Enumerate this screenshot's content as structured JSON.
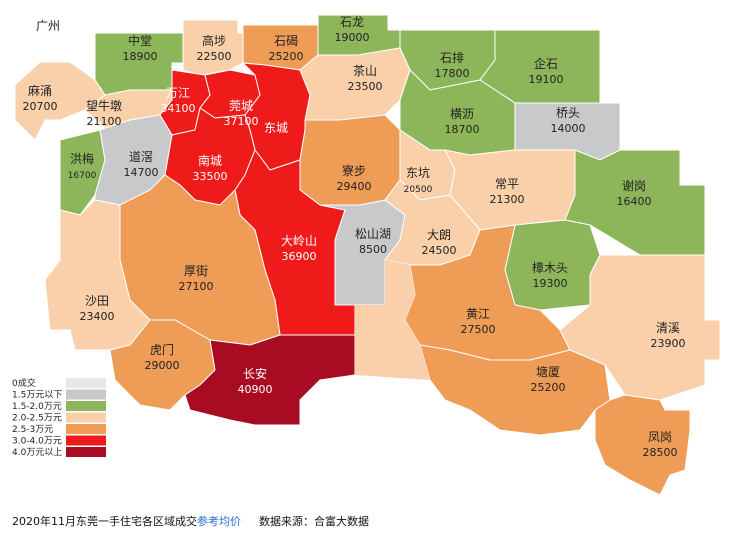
{
  "map": {
    "outside_label": "广州",
    "colors": {
      "zero": "#e7e7e7",
      "below_1_5": "#c8c9cb",
      "1_5_to_2": "#8db65a",
      "2_to_2_5": "#f9d0aa",
      "2_5_to_3": "#ef9c57",
      "3_to_4": "#ef1b1b",
      "above_4": "#a80c22"
    },
    "regions": [
      {
        "name": "中堂",
        "price": "18900",
        "tier": "1_5_to_2"
      },
      {
        "name": "高埗",
        "price": "22500",
        "tier": "2_to_2_5"
      },
      {
        "name": "石碣",
        "price": "25200",
        "tier": "2_5_to_3"
      },
      {
        "name": "石龙",
        "price": "19000",
        "tier": "1_5_to_2"
      },
      {
        "name": "石排",
        "price": "17800",
        "tier": "1_5_to_2"
      },
      {
        "name": "企石",
        "price": "19100",
        "tier": "1_5_to_2"
      },
      {
        "name": "麻涌",
        "price": "20700",
        "tier": "2_to_2_5"
      },
      {
        "name": "望牛墩",
        "price": "21100",
        "tier": "2_to_2_5"
      },
      {
        "name": "万江",
        "price": "34100",
        "tier": "3_to_4"
      },
      {
        "name": "莞城",
        "price": "37100",
        "tier": "3_to_4"
      },
      {
        "name": "东城",
        "price": "",
        "tier": "3_to_4"
      },
      {
        "name": "茶山",
        "price": "23500",
        "tier": "2_to_2_5"
      },
      {
        "name": "横沥",
        "price": "18700",
        "tier": "1_5_to_2"
      },
      {
        "name": "桥头",
        "price": "14000",
        "tier": "below_1_5"
      },
      {
        "name": "洪梅",
        "price": "16700",
        "tier": "1_5_to_2"
      },
      {
        "name": "道滘",
        "price": "14700",
        "tier": "below_1_5"
      },
      {
        "name": "南城",
        "price": "33500",
        "tier": "3_to_4"
      },
      {
        "name": "寮步",
        "price": "29400",
        "tier": "2_5_to_3"
      },
      {
        "name": "东坑",
        "price": "20500",
        "tier": "2_to_2_5"
      },
      {
        "name": "常平",
        "price": "21300",
        "tier": "2_to_2_5"
      },
      {
        "name": "谢岗",
        "price": "16400",
        "tier": "1_5_to_2"
      },
      {
        "name": "大岭山",
        "price": "36900",
        "tier": "3_to_4"
      },
      {
        "name": "松山湖",
        "price": "8500",
        "tier": "below_1_5"
      },
      {
        "name": "大朗",
        "price": "24500",
        "tier": "2_to_2_5"
      },
      {
        "name": "厚街",
        "price": "27100",
        "tier": "2_5_to_3"
      },
      {
        "name": "樟木头",
        "price": "19300",
        "tier": "1_5_to_2"
      },
      {
        "name": "沙田",
        "price": "23400",
        "tier": "2_to_2_5"
      },
      {
        "name": "黄江",
        "price": "27500",
        "tier": "2_5_to_3"
      },
      {
        "name": "清溪",
        "price": "23900",
        "tier": "2_to_2_5"
      },
      {
        "name": "虎门",
        "price": "29000",
        "tier": "2_5_to_3"
      },
      {
        "name": "长安",
        "price": "40900",
        "tier": "above_4"
      },
      {
        "name": "塘厦",
        "price": "25200",
        "tier": "2_5_to_3"
      },
      {
        "name": "凤岗",
        "price": "28500",
        "tier": "2_5_to_3"
      }
    ]
  },
  "legend": {
    "items": [
      {
        "label": "0成交",
        "tier": "zero"
      },
      {
        "label": "1.5万元以下",
        "tier": "below_1_5"
      },
      {
        "label": "1.5-2.0万元",
        "tier": "1_5_to_2"
      },
      {
        "label": "2.0-2.5万元",
        "tier": "2_to_2_5"
      },
      {
        "label": "2.5-3万元",
        "tier": "2_5_to_3"
      },
      {
        "label": "3.0-4.0万元",
        "tier": "3_to_4"
      },
      {
        "label": "4.0万元以上",
        "tier": "above_4"
      }
    ]
  },
  "footer": {
    "caption_main": "2020年11月东莞一手住宅各区域成交",
    "caption_link": "参考均价",
    "source": "数据来源：合富大数据"
  }
}
